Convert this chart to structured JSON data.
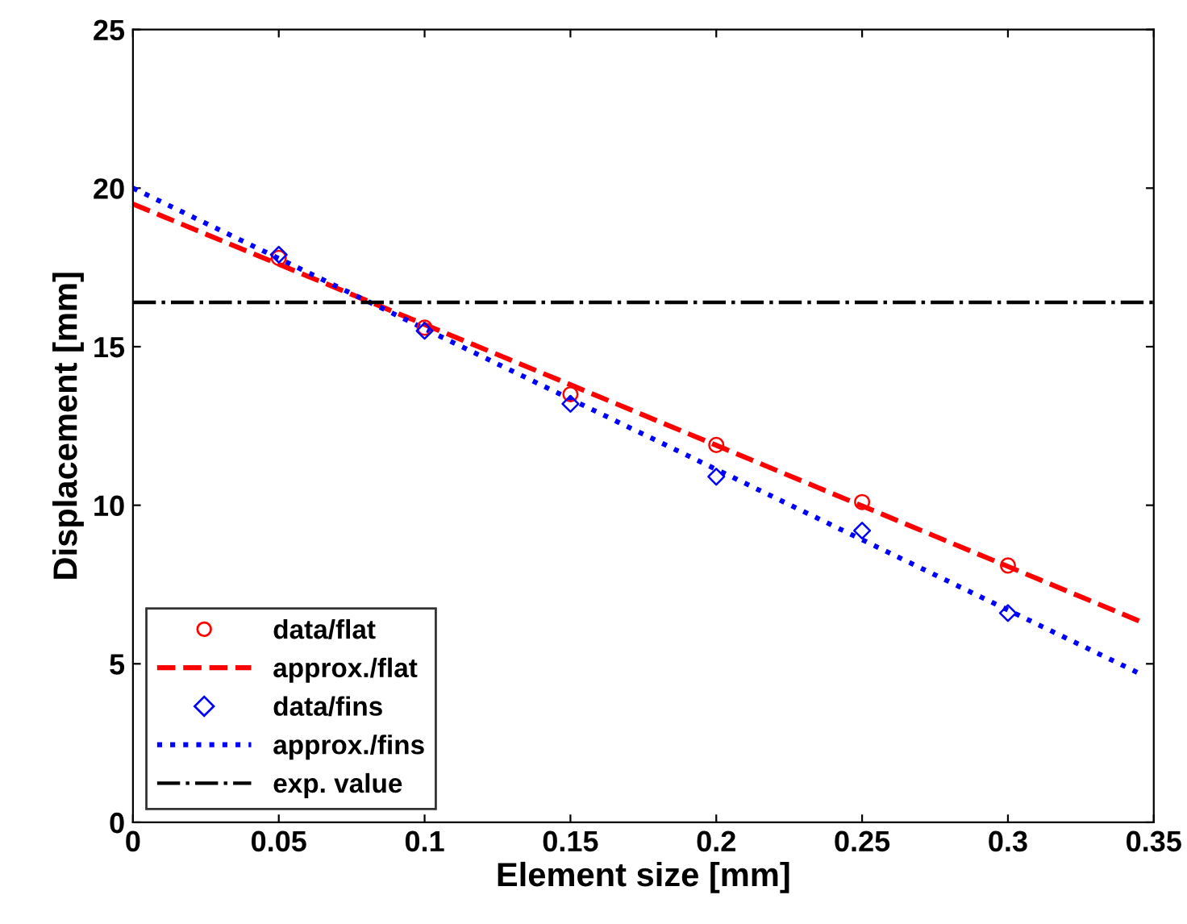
{
  "chart_data": {
    "type": "line",
    "xlabel": "Element size [mm]",
    "ylabel": "Displacement [mm]",
    "xlim": [
      0,
      0.35
    ],
    "ylim": [
      0,
      25
    ],
    "xticks": [
      0,
      0.05,
      0.1,
      0.15,
      0.2,
      0.25,
      0.3,
      0.35
    ],
    "yticks": [
      0,
      5,
      10,
      15,
      20,
      25
    ],
    "grid": false,
    "legend": "bottom left",
    "series": [
      {
        "name": "data/flat",
        "type": "scatter",
        "marker": "circle",
        "color": "#ff0000",
        "x": [
          0.05,
          0.1,
          0.15,
          0.2,
          0.25,
          0.3
        ],
        "values": [
          17.8,
          15.6,
          13.5,
          11.9,
          10.1,
          8.1
        ]
      },
      {
        "name": "approx./flat",
        "line_style": "dashed",
        "color": "#ff0000",
        "x": [
          0,
          0.15,
          0.345
        ],
        "values": [
          19.5,
          13.8,
          6.35
        ]
      },
      {
        "name": "data/fins",
        "type": "scatter",
        "marker": "diamond",
        "color": "#0000ff",
        "x": [
          0.05,
          0.1,
          0.15,
          0.2,
          0.25,
          0.3
        ],
        "values": [
          17.9,
          15.5,
          13.2,
          10.9,
          9.2,
          6.6
        ]
      },
      {
        "name": "approx./fins",
        "line_style": "dotted",
        "color": "#0000ff",
        "x": [
          0,
          0.345
        ],
        "values": [
          20.0,
          4.7
        ]
      }
    ],
    "ref_lines": [
      {
        "axis": "y",
        "value": 16.4,
        "label": "exp. value",
        "color": "#000000",
        "line_style": "dashdot"
      }
    ]
  }
}
